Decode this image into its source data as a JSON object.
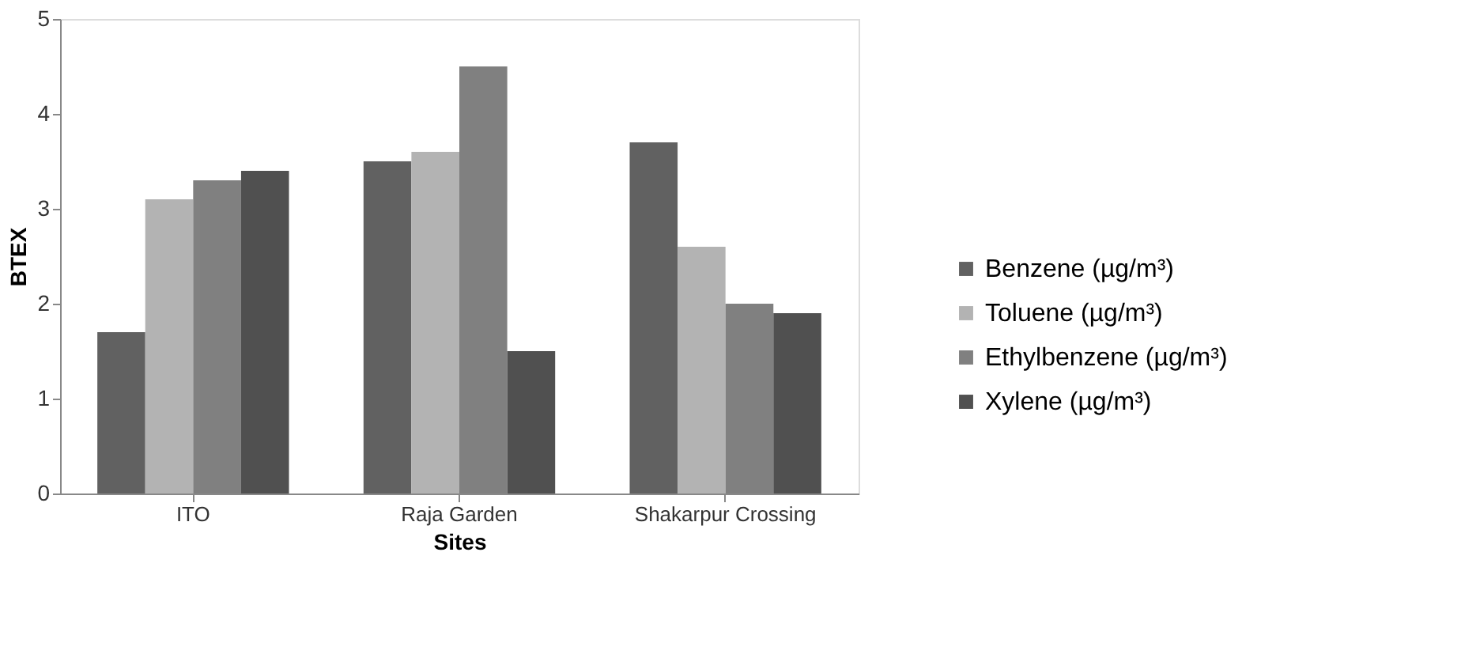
{
  "chart_data": {
    "type": "bar",
    "xlabel": "Sites",
    "ylabel": "BTEX",
    "categories": [
      "ITO",
      "Raja Garden",
      "Shakarpur Crossing"
    ],
    "series": [
      {
        "name": "Benzene (µg/m³)",
        "color": "#616161",
        "values": [
          1.7,
          3.5,
          3.7
        ]
      },
      {
        "name": "Toluene (µg/m³)",
        "color": "#b3b3b3",
        "values": [
          3.1,
          3.6,
          2.6
        ]
      },
      {
        "name": "Ethylbenzene (µg/m³)",
        "color": "#808080",
        "values": [
          3.3,
          4.5,
          2.0
        ]
      },
      {
        "name": "Xylene (µg/m³)",
        "color": "#505050",
        "values": [
          3.4,
          1.5,
          1.9
        ]
      }
    ],
    "ylim": [
      0,
      5
    ],
    "yticks": [
      0,
      1,
      2,
      3,
      4,
      5
    ],
    "grid": false,
    "legend": "bottom right"
  }
}
